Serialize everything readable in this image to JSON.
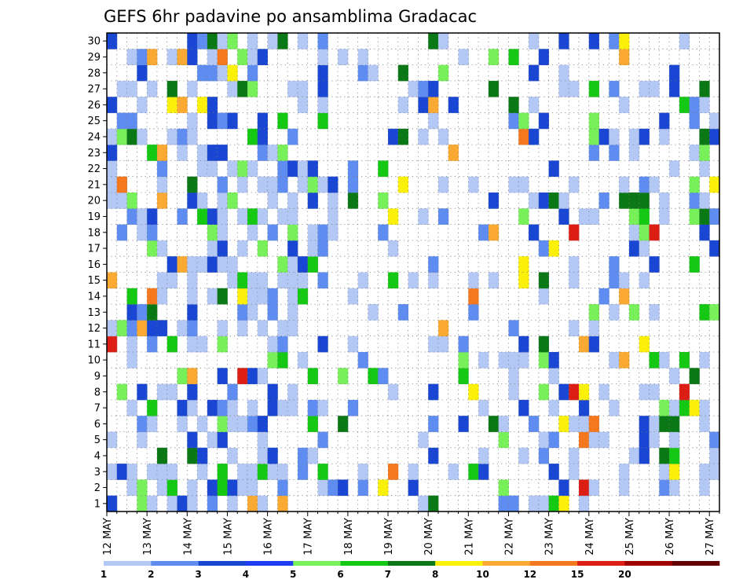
{
  "chart_data": {
    "type": "heatmap",
    "title": "GEFS 6hr padavine po ansamblima Gradacac",
    "x_tick_labels": [
      "12 MAY",
      "13 MAY",
      "14 MAY",
      "15 MAY",
      "16 MAY",
      "17 MAY",
      "18 MAY",
      "19 MAY",
      "20 MAY",
      "21 MAY",
      "22 MAY",
      "23 MAY",
      "24 MAY",
      "25 MAY",
      "26 MAY",
      "27 MAY"
    ],
    "y_tick_labels": [
      "1",
      "2",
      "3",
      "4",
      "5",
      "6",
      "7",
      "8",
      "9",
      "10",
      "11",
      "12",
      "13",
      "14",
      "15",
      "16",
      "17",
      "18",
      "19",
      "20",
      "21",
      "22",
      "23",
      "24",
      "25",
      "26",
      "27",
      "28",
      "29",
      "30"
    ],
    "x_steps_per_day": 4,
    "n_steps": 61,
    "n_members": 30,
    "grid": "dotted",
    "colorbar": {
      "placement": "bottom",
      "levels": [
        "1",
        "2",
        "3",
        "4",
        "5",
        "6",
        "7",
        "8",
        "10",
        "12",
        "15",
        "20"
      ],
      "colors": [
        "#b4c8f5",
        "#5f8cf0",
        "#1946d2",
        "#1e3cf0",
        "#78f05a",
        "#14c814",
        "#0a7814",
        "#faf00a",
        "#faaa32",
        "#f5781e",
        "#dc1e14",
        "#a00000",
        "#640000"
      ]
    },
    "colors": {
      "background": "#ffffff",
      "frame": "#000000",
      "gridline": "#7a7a7a"
    }
  }
}
